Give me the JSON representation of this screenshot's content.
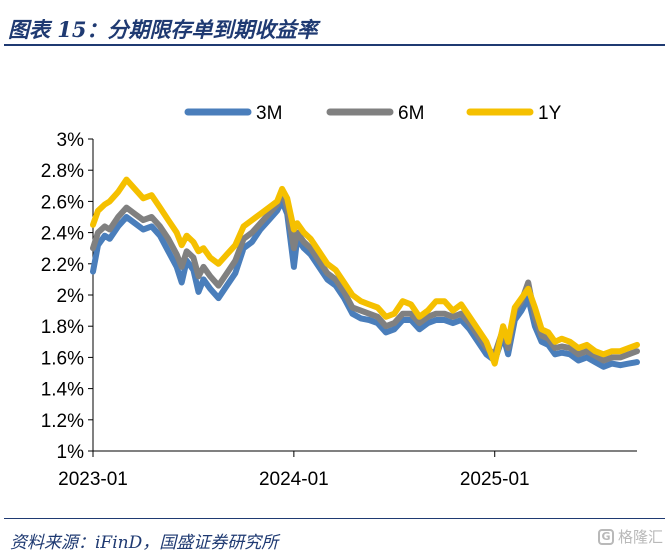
{
  "header": {
    "title": "图表 15：分期限存单到期收益率"
  },
  "footer": {
    "source": "资料来源：iFinD，国盛证券研究所",
    "watermark_text": "格隆汇",
    "watermark_icon": "G"
  },
  "colors": {
    "3M": "#4a7ebb",
    "6M": "#808080",
    "1Y": "#f5c000",
    "title": "#1f3a72"
  },
  "chart_data": {
    "type": "line",
    "title": "",
    "xlabel": "",
    "ylabel": "",
    "x_ticks": [
      "2023-01",
      "2024-01",
      "2025-01"
    ],
    "x_tick_months": [
      0,
      12,
      24
    ],
    "xlim_months": [
      0,
      32.5
    ],
    "y_ticks": [
      "3%",
      "2.8%",
      "2.6%",
      "2.4%",
      "2.2%",
      "2%",
      "1.8%",
      "1.6%",
      "1.4%",
      "1.2%",
      "1%"
    ],
    "ylim": [
      1.0,
      3.0
    ],
    "legend_position": "top",
    "grid": false,
    "series": [
      {
        "name": "3M",
        "color": "#4a7ebb",
        "points": [
          [
            0,
            2.15
          ],
          [
            0.3,
            2.32
          ],
          [
            0.7,
            2.38
          ],
          [
            1.0,
            2.36
          ],
          [
            1.5,
            2.44
          ],
          [
            2.0,
            2.5
          ],
          [
            2.5,
            2.46
          ],
          [
            3.0,
            2.42
          ],
          [
            3.5,
            2.44
          ],
          [
            4.0,
            2.38
          ],
          [
            4.5,
            2.28
          ],
          [
            5.0,
            2.18
          ],
          [
            5.3,
            2.08
          ],
          [
            5.6,
            2.22
          ],
          [
            6.0,
            2.16
          ],
          [
            6.3,
            2.02
          ],
          [
            6.6,
            2.1
          ],
          [
            7.0,
            2.04
          ],
          [
            7.5,
            1.98
          ],
          [
            8.0,
            2.06
          ],
          [
            8.5,
            2.14
          ],
          [
            9.0,
            2.3
          ],
          [
            9.5,
            2.34
          ],
          [
            10.0,
            2.42
          ],
          [
            10.5,
            2.48
          ],
          [
            11.0,
            2.54
          ],
          [
            11.3,
            2.6
          ],
          [
            11.6,
            2.52
          ],
          [
            12.0,
            2.18
          ],
          [
            12.2,
            2.36
          ],
          [
            12.6,
            2.3
          ],
          [
            13.0,
            2.26
          ],
          [
            13.5,
            2.18
          ],
          [
            14.0,
            2.1
          ],
          [
            14.5,
            2.06
          ],
          [
            15.0,
            1.98
          ],
          [
            15.5,
            1.88
          ],
          [
            16.0,
            1.85
          ],
          [
            16.5,
            1.84
          ],
          [
            17.0,
            1.82
          ],
          [
            17.5,
            1.76
          ],
          [
            18.0,
            1.78
          ],
          [
            18.5,
            1.84
          ],
          [
            19.0,
            1.84
          ],
          [
            19.5,
            1.78
          ],
          [
            20.0,
            1.82
          ],
          [
            20.5,
            1.84
          ],
          [
            21.0,
            1.84
          ],
          [
            21.5,
            1.82
          ],
          [
            22.0,
            1.84
          ],
          [
            22.5,
            1.78
          ],
          [
            23.0,
            1.7
          ],
          [
            23.5,
            1.62
          ],
          [
            24.0,
            1.58
          ],
          [
            24.5,
            1.74
          ],
          [
            24.8,
            1.62
          ],
          [
            25.2,
            1.84
          ],
          [
            25.6,
            1.9
          ],
          [
            26.0,
            1.98
          ],
          [
            26.4,
            1.8
          ],
          [
            26.8,
            1.7
          ],
          [
            27.2,
            1.68
          ],
          [
            27.6,
            1.62
          ],
          [
            28.0,
            1.63
          ],
          [
            28.5,
            1.62
          ],
          [
            29.0,
            1.58
          ],
          [
            29.5,
            1.6
          ],
          [
            30.0,
            1.57
          ],
          [
            30.5,
            1.54
          ],
          [
            31.0,
            1.56
          ],
          [
            31.5,
            1.55
          ],
          [
            32.0,
            1.56
          ],
          [
            32.5,
            1.57
          ]
        ]
      },
      {
        "name": "6M",
        "color": "#808080",
        "points": [
          [
            0,
            2.3
          ],
          [
            0.3,
            2.4
          ],
          [
            0.7,
            2.44
          ],
          [
            1.0,
            2.42
          ],
          [
            1.5,
            2.5
          ],
          [
            2.0,
            2.56
          ],
          [
            2.5,
            2.52
          ],
          [
            3.0,
            2.48
          ],
          [
            3.5,
            2.5
          ],
          [
            4.0,
            2.44
          ],
          [
            4.5,
            2.36
          ],
          [
            5.0,
            2.26
          ],
          [
            5.3,
            2.18
          ],
          [
            5.6,
            2.28
          ],
          [
            6.0,
            2.24
          ],
          [
            6.3,
            2.12
          ],
          [
            6.6,
            2.18
          ],
          [
            7.0,
            2.12
          ],
          [
            7.5,
            2.06
          ],
          [
            8.0,
            2.14
          ],
          [
            8.5,
            2.22
          ],
          [
            9.0,
            2.36
          ],
          [
            9.5,
            2.4
          ],
          [
            10.0,
            2.46
          ],
          [
            10.5,
            2.52
          ],
          [
            11.0,
            2.58
          ],
          [
            11.3,
            2.66
          ],
          [
            11.6,
            2.56
          ],
          [
            12.0,
            2.3
          ],
          [
            12.2,
            2.4
          ],
          [
            12.6,
            2.34
          ],
          [
            13.0,
            2.3
          ],
          [
            13.5,
            2.22
          ],
          [
            14.0,
            2.14
          ],
          [
            14.5,
            2.1
          ],
          [
            15.0,
            2.02
          ],
          [
            15.5,
            1.92
          ],
          [
            16.0,
            1.9
          ],
          [
            16.5,
            1.88
          ],
          [
            17.0,
            1.86
          ],
          [
            17.5,
            1.8
          ],
          [
            18.0,
            1.82
          ],
          [
            18.5,
            1.88
          ],
          [
            19.0,
            1.88
          ],
          [
            19.5,
            1.82
          ],
          [
            20.0,
            1.86
          ],
          [
            20.5,
            1.88
          ],
          [
            21.0,
            1.88
          ],
          [
            21.5,
            1.86
          ],
          [
            22.0,
            1.88
          ],
          [
            22.5,
            1.82
          ],
          [
            23.0,
            1.74
          ],
          [
            23.5,
            1.66
          ],
          [
            24.0,
            1.62
          ],
          [
            24.5,
            1.78
          ],
          [
            24.8,
            1.66
          ],
          [
            25.2,
            1.9
          ],
          [
            25.6,
            1.96
          ],
          [
            26.0,
            2.08
          ],
          [
            26.4,
            1.86
          ],
          [
            26.8,
            1.74
          ],
          [
            27.2,
            1.72
          ],
          [
            27.6,
            1.66
          ],
          [
            28.0,
            1.67
          ],
          [
            28.5,
            1.66
          ],
          [
            29.0,
            1.62
          ],
          [
            29.5,
            1.64
          ],
          [
            30.0,
            1.61
          ],
          [
            30.5,
            1.58
          ],
          [
            31.0,
            1.6
          ],
          [
            31.5,
            1.6
          ],
          [
            32.0,
            1.62
          ],
          [
            32.5,
            1.64
          ]
        ]
      },
      {
        "name": "1Y",
        "color": "#f5c000",
        "points": [
          [
            0,
            2.45
          ],
          [
            0.3,
            2.54
          ],
          [
            0.7,
            2.58
          ],
          [
            1.0,
            2.6
          ],
          [
            1.5,
            2.66
          ],
          [
            2.0,
            2.74
          ],
          [
            2.5,
            2.68
          ],
          [
            3.0,
            2.62
          ],
          [
            3.5,
            2.64
          ],
          [
            4.0,
            2.56
          ],
          [
            4.5,
            2.48
          ],
          [
            5.0,
            2.4
          ],
          [
            5.3,
            2.32
          ],
          [
            5.6,
            2.38
          ],
          [
            6.0,
            2.34
          ],
          [
            6.3,
            2.28
          ],
          [
            6.6,
            2.3
          ],
          [
            7.0,
            2.24
          ],
          [
            7.5,
            2.2
          ],
          [
            8.0,
            2.26
          ],
          [
            8.5,
            2.32
          ],
          [
            9.0,
            2.44
          ],
          [
            9.5,
            2.48
          ],
          [
            10.0,
            2.52
          ],
          [
            10.5,
            2.56
          ],
          [
            11.0,
            2.6
          ],
          [
            11.3,
            2.68
          ],
          [
            11.6,
            2.62
          ],
          [
            12.0,
            2.42
          ],
          [
            12.2,
            2.46
          ],
          [
            12.6,
            2.4
          ],
          [
            13.0,
            2.36
          ],
          [
            13.5,
            2.28
          ],
          [
            14.0,
            2.2
          ],
          [
            14.5,
            2.16
          ],
          [
            15.0,
            2.08
          ],
          [
            15.5,
            2.0
          ],
          [
            16.0,
            1.96
          ],
          [
            16.5,
            1.94
          ],
          [
            17.0,
            1.92
          ],
          [
            17.5,
            1.86
          ],
          [
            18.0,
            1.88
          ],
          [
            18.5,
            1.96
          ],
          [
            19.0,
            1.94
          ],
          [
            19.5,
            1.86
          ],
          [
            20.0,
            1.9
          ],
          [
            20.5,
            1.96
          ],
          [
            21.0,
            1.96
          ],
          [
            21.5,
            1.9
          ],
          [
            22.0,
            1.94
          ],
          [
            22.5,
            1.86
          ],
          [
            23.0,
            1.78
          ],
          [
            23.5,
            1.7
          ],
          [
            24.0,
            1.56
          ],
          [
            24.5,
            1.8
          ],
          [
            24.8,
            1.7
          ],
          [
            25.2,
            1.92
          ],
          [
            25.6,
            1.98
          ],
          [
            26.0,
            2.04
          ],
          [
            26.4,
            1.92
          ],
          [
            26.8,
            1.78
          ],
          [
            27.2,
            1.76
          ],
          [
            27.6,
            1.7
          ],
          [
            28.0,
            1.72
          ],
          [
            28.5,
            1.7
          ],
          [
            29.0,
            1.66
          ],
          [
            29.5,
            1.68
          ],
          [
            30.0,
            1.64
          ],
          [
            30.5,
            1.62
          ],
          [
            31.0,
            1.64
          ],
          [
            31.5,
            1.64
          ],
          [
            32.0,
            1.66
          ],
          [
            32.5,
            1.68
          ]
        ]
      }
    ]
  }
}
